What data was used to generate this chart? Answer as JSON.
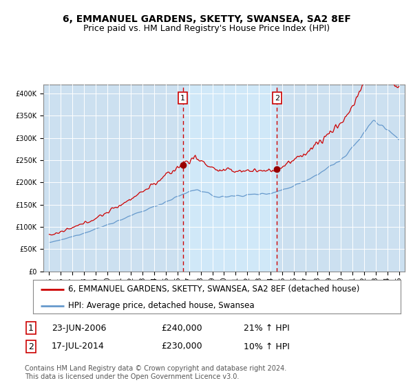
{
  "title": "6, EMMANUEL GARDENS, SKETTY, SWANSEA, SA2 8EF",
  "subtitle": "Price paid vs. HM Land Registry's House Price Index (HPI)",
  "legend_line1": "6, EMMANUEL GARDENS, SKETTY, SWANSEA, SA2 8EF (detached house)",
  "legend_line2": "HPI: Average price, detached house, Swansea",
  "footnote": "Contains HM Land Registry data © Crown copyright and database right 2024.\nThis data is licensed under the Open Government Licence v3.0.",
  "sale1_date": "23-JUN-2006",
  "sale1_price": "£240,000",
  "sale1_label": "21% ↑ HPI",
  "sale2_date": "17-JUL-2014",
  "sale2_price": "£230,000",
  "sale2_label": "10% ↑ HPI",
  "sale1_x": 2006.47,
  "sale1_y": 240000,
  "sale2_x": 2014.54,
  "sale2_y": 230000,
  "ylim": [
    0,
    420000
  ],
  "yticks": [
    0,
    50000,
    100000,
    150000,
    200000,
    250000,
    300000,
    350000,
    400000
  ],
  "xlim_min": 1994.5,
  "xlim_max": 2025.5,
  "background_color": "#cce0f0",
  "shade_color": "#d0e8f8",
  "fig_bg": "#ffffff",
  "red_line_color": "#cc0000",
  "blue_line_color": "#6699cc",
  "sale_marker_color": "#990000",
  "vline_color": "#cc0000",
  "box_edge_color": "#cc0000",
  "title_fontsize": 10,
  "subtitle_fontsize": 9,
  "tick_fontsize": 7,
  "legend_fontsize": 8.5,
  "info_fontsize": 9
}
